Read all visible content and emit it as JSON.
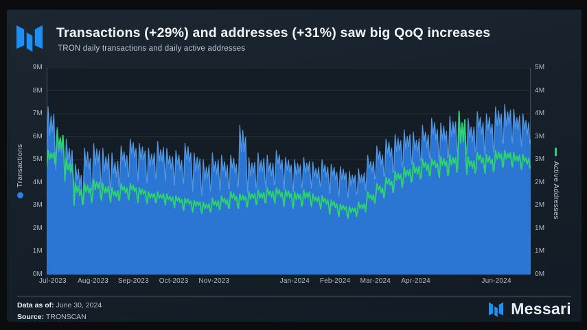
{
  "header": {
    "title": "Transactions (+29%) and addresses (+31%) saw big QoQ increases",
    "subtitle": "TRON daily transactions and daily active addresses"
  },
  "chart_data": {
    "type": "area+line",
    "title": "Transactions (+29%) and addresses (+31%) saw big QoQ increases",
    "subtitle": "TRON daily transactions and daily active addresses",
    "grid": "horizontal",
    "x_axis": {
      "range": "Jul-2023 to Jun-2024",
      "ticks": [
        {
          "label": "Jul-2023",
          "month": 0
        },
        {
          "label": "Aug-2023",
          "month": 1
        },
        {
          "label": "Sep-2023",
          "month": 2
        },
        {
          "label": "Oct-2023",
          "month": 3
        },
        {
          "label": "Nov-2023",
          "month": 4
        },
        {
          "label": "Jan-2024",
          "month": 6
        },
        {
          "label": "Feb-2024",
          "month": 7
        },
        {
          "label": "Mar-2024",
          "month": 8
        },
        {
          "label": "Apr-2024",
          "month": 9
        },
        {
          "label": "Jun-2024",
          "month": 11
        }
      ]
    },
    "left_axis": {
      "label": "Transactions",
      "range_millions": [
        0,
        9
      ],
      "ticks": [
        "0M",
        "1M",
        "2M",
        "3M",
        "4M",
        "5M",
        "6M",
        "7M",
        "8M",
        "9M"
      ]
    },
    "right_axis": {
      "label": "Active Addresses",
      "range_millions": [
        0,
        5
      ],
      "ticks": [
        "0M",
        "1M",
        "1M",
        "2M",
        "2M",
        "3M",
        "3M",
        "4M",
        "4M",
        "5M"
      ]
    },
    "series": [
      {
        "name": "Transactions",
        "axis": "left",
        "style": "area",
        "color": "#2e7de2",
        "unit": "millions, weekly high/low estimates Jul 2023 - Jun 2024",
        "weekly_high": [
          7.3,
          6.4,
          5.9,
          4.8,
          5.5,
          5.7,
          5.5,
          5.3,
          5.6,
          5.9,
          5.7,
          5.5,
          5.8,
          5.5,
          5.4,
          5.7,
          5.3,
          5.0,
          5.3,
          5.2,
          5.2,
          6.5,
          5.1,
          5.3,
          5.2,
          5.4,
          5.1,
          5.0,
          5.1,
          4.9,
          5.0,
          4.8,
          4.7,
          4.5,
          4.6,
          5.2,
          5.6,
          5.9,
          6.1,
          6.3,
          6.2,
          6.5,
          6.8,
          6.6,
          6.9,
          7.0,
          6.8,
          7.1,
          7.0,
          7.3,
          7.4,
          7.2,
          7.0
        ],
        "weekly_low": [
          4.9,
          4.3,
          3.8,
          3.0,
          3.5,
          3.8,
          3.6,
          3.4,
          4.0,
          4.3,
          4.1,
          3.9,
          4.1,
          3.9,
          3.8,
          4.0,
          3.6,
          3.3,
          3.6,
          3.5,
          3.7,
          3.9,
          3.5,
          3.7,
          3.6,
          3.9,
          3.7,
          3.6,
          3.8,
          3.6,
          3.7,
          3.5,
          3.4,
          3.3,
          3.4,
          3.9,
          4.1,
          4.3,
          4.5,
          4.7,
          4.6,
          4.8,
          5.0,
          4.9,
          5.1,
          5.2,
          5.0,
          5.3,
          5.2,
          5.5,
          5.6,
          5.5,
          5.4
        ]
      },
      {
        "name": "Active Addresses",
        "axis": "right",
        "style": "line",
        "color": "#2dd36f",
        "unit": "millions, weekly high/low estimates Jul 2023 - Jun 2024",
        "weekly_high": [
          3.0,
          3.5,
          2.8,
          2.2,
          2.2,
          2.3,
          2.2,
          2.1,
          2.2,
          2.2,
          2.1,
          2.0,
          2.0,
          1.95,
          1.9,
          1.85,
          1.8,
          1.75,
          1.85,
          1.9,
          2.0,
          1.95,
          2.0,
          2.05,
          2.1,
          2.1,
          2.05,
          2.0,
          2.05,
          1.95,
          1.9,
          1.8,
          1.7,
          1.65,
          1.75,
          2.0,
          2.2,
          2.35,
          2.5,
          2.6,
          2.7,
          2.8,
          2.8,
          2.85,
          2.9,
          3.95,
          2.85,
          2.95,
          2.9,
          3.0,
          3.0,
          2.95,
          2.9
        ],
        "weekly_low": [
          2.6,
          2.6,
          2.2,
          1.65,
          1.7,
          1.8,
          1.75,
          1.7,
          1.8,
          1.8,
          1.75,
          1.7,
          1.7,
          1.65,
          1.6,
          1.55,
          1.5,
          1.45,
          1.5,
          1.55,
          1.6,
          1.6,
          1.65,
          1.65,
          1.7,
          1.7,
          1.65,
          1.6,
          1.65,
          1.6,
          1.55,
          1.45,
          1.4,
          1.35,
          1.45,
          1.65,
          1.8,
          1.95,
          2.05,
          2.15,
          2.2,
          2.3,
          2.4,
          2.35,
          2.4,
          2.45,
          2.35,
          2.5,
          2.45,
          2.55,
          2.6,
          2.55,
          2.5
        ]
      }
    ],
    "legend": [
      {
        "label": "Transactions",
        "marker": "dot",
        "color": "#2e7de2"
      },
      {
        "label": "Active Addresses",
        "marker": "line",
        "color": "#2dd36f"
      }
    ]
  },
  "footer": {
    "data_as_of_label": "Data as of:",
    "data_as_of_value": "June 30, 2024",
    "source_label": "Source:",
    "source_value": "TRONSCAN",
    "brand": "Messari"
  },
  "colors": {
    "page_background": "#0a0c0e",
    "card_background": "#17212b",
    "plot_background": "#141d25",
    "transactions_blue": "#2e7de2",
    "transactions_edge": "#5ca3f2",
    "addresses_green": "#2dd36f",
    "title_text": "#f2f6f9",
    "muted_text": "#aeb9c3",
    "gridline": "rgba(255,255,255,0.08)",
    "axis_line": "#4c5a66",
    "brand_blue": "#1f8ef0"
  }
}
